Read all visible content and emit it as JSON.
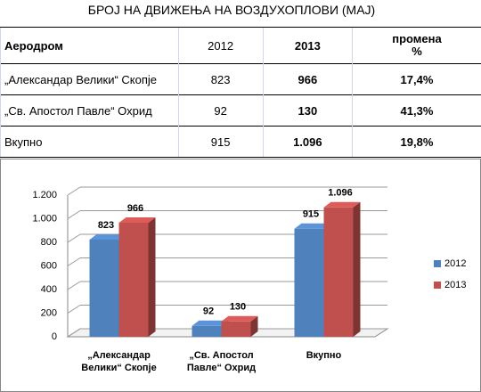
{
  "table": {
    "title": "БРОЈ НА ДВИЖЕЊА НА ВОЗДУХОПЛОВИ (МАЈ)",
    "header": [
      "Аеродром",
      "2012",
      "2013",
      "промена %"
    ],
    "rows": [
      [
        "„Александар Велики“ Скопје",
        "823",
        "966",
        "17,4%"
      ],
      [
        "„Св. Апостол Павле“ Охрид",
        "92",
        "130",
        "41,3%"
      ],
      [
        "Вкупно",
        "915",
        "1.096",
        "19,8%"
      ]
    ]
  },
  "chart_data": {
    "type": "bar",
    "categories": [
      "„Александар Велики“ Скопје",
      "„Св. Апостол Павле“ Охрид",
      "Вкупно"
    ],
    "series": [
      {
        "name": "2012",
        "color": "#4f81bd",
        "values": [
          823,
          92,
          915
        ],
        "value_labels": [
          "823",
          "92",
          "915"
        ]
      },
      {
        "name": "2013",
        "color": "#c0504d",
        "values": [
          966,
          130,
          1096
        ],
        "value_labels": [
          "966",
          "130",
          "1.096"
        ]
      }
    ],
    "ylim": [
      0,
      1200
    ],
    "yticks": [
      0,
      200,
      400,
      600,
      800,
      {
        "value": 1000,
        "label": "1.000"
      },
      {
        "value": 1200,
        "label": "1.200"
      }
    ],
    "grid": true,
    "legend": "right"
  }
}
